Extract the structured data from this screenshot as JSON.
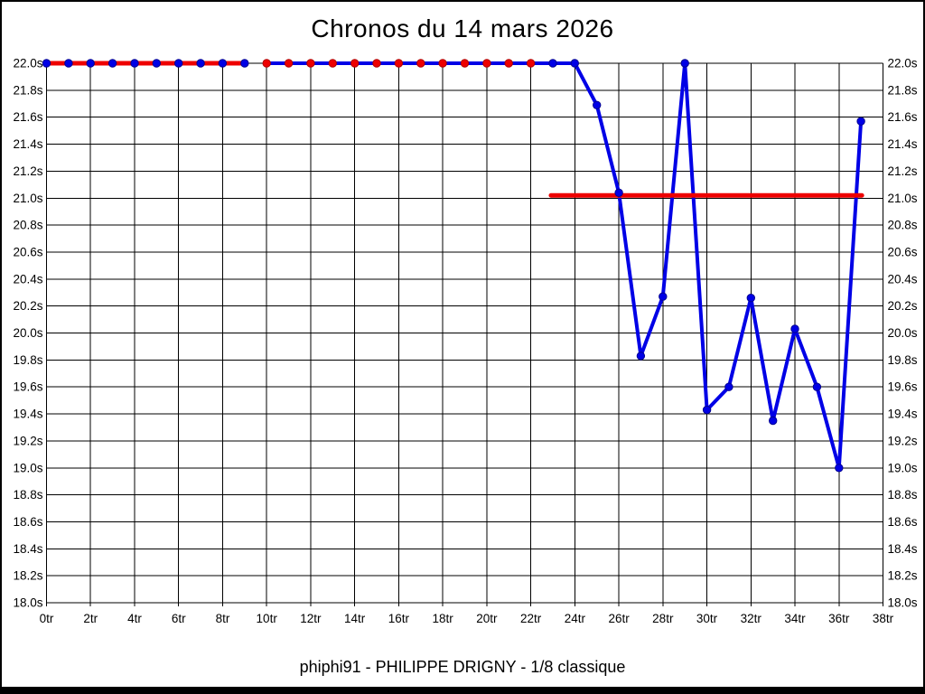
{
  "chart_data": {
    "type": "line",
    "title": "Chronos du 14 mars 2026",
    "footer": "phiphi91 - PHILIPPE DRIGNY - 1/8 classique",
    "x_unit": "tr",
    "y_unit": "s",
    "xlim": [
      0,
      38
    ],
    "ylim": [
      18.0,
      22.0
    ],
    "y_step": 0.2,
    "x_tick_step": 2,
    "grid": true,
    "legend": "none",
    "x_tick_labels": [
      "0tr",
      "2tr",
      "4tr",
      "6tr",
      "8tr",
      "10tr",
      "12tr",
      "14tr",
      "16tr",
      "18tr",
      "20tr",
      "22tr",
      "24tr",
      "26tr",
      "28tr",
      "30tr",
      "32tr",
      "34tr",
      "36tr",
      "38tr"
    ],
    "y_tick_labels": [
      "22.0s",
      "21.8s",
      "21.6s",
      "21.4s",
      "21.2s",
      "21.0s",
      "20.8s",
      "20.6s",
      "20.4s",
      "20.2s",
      "20.0s",
      "19.8s",
      "19.6s",
      "19.4s",
      "19.2s",
      "19.0s",
      "18.8s",
      "18.6s",
      "18.4s",
      "18.2s",
      "18.0s"
    ],
    "series": [
      {
        "name": "lap-times",
        "color": "#0000e6",
        "x": [
          0,
          1,
          2,
          3,
          4,
          5,
          6,
          7,
          8,
          9,
          10,
          11,
          12,
          13,
          14,
          15,
          16,
          17,
          18,
          19,
          20,
          21,
          22,
          23,
          24,
          25,
          26,
          27,
          28,
          29,
          30,
          31,
          32,
          33,
          34,
          35,
          36,
          37
        ],
        "values": [
          22.0,
          22.0,
          22.0,
          22.0,
          22.0,
          22.0,
          22.0,
          22.0,
          22.0,
          22.0,
          22.0,
          22.0,
          22.0,
          22.0,
          22.0,
          22.0,
          22.0,
          22.0,
          22.0,
          22.0,
          22.0,
          22.0,
          22.0,
          22.0,
          22.0,
          21.69,
          21.04,
          19.83,
          20.27,
          22.0,
          19.43,
          19.6,
          20.26,
          19.35,
          20.03,
          19.6,
          19.0,
          21.57
        ],
        "line_width": 4,
        "line_segments": [
          [
            0,
            9
          ],
          [
            10,
            37
          ]
        ],
        "marker_radius": 4.2,
        "marker_color_ranges": [
          {
            "from": 0,
            "to": 9,
            "color": "#0000e6"
          },
          {
            "from": 10,
            "to": 22,
            "color": "#ee0000"
          },
          {
            "from": 23,
            "to": 37,
            "color": "#0000e6"
          }
        ]
      }
    ],
    "connector_segment": {
      "from_x": 9,
      "to_x": 10,
      "value": 22.0,
      "color": "#000000",
      "width": 1
    },
    "reference_lines": [
      {
        "name": "run-1-reference",
        "value": 22.0,
        "from_x": 0,
        "to_x": 9,
        "color": "#ee0000",
        "width": 5
      },
      {
        "name": "run-2-reference",
        "value": 21.02,
        "from_x": 23,
        "to_x": 37,
        "color": "#ee0000",
        "width": 5
      }
    ],
    "colors": {
      "grid": "#000000",
      "axis_text": "#000000",
      "background": "#ffffff",
      "frame": "#000000"
    }
  }
}
